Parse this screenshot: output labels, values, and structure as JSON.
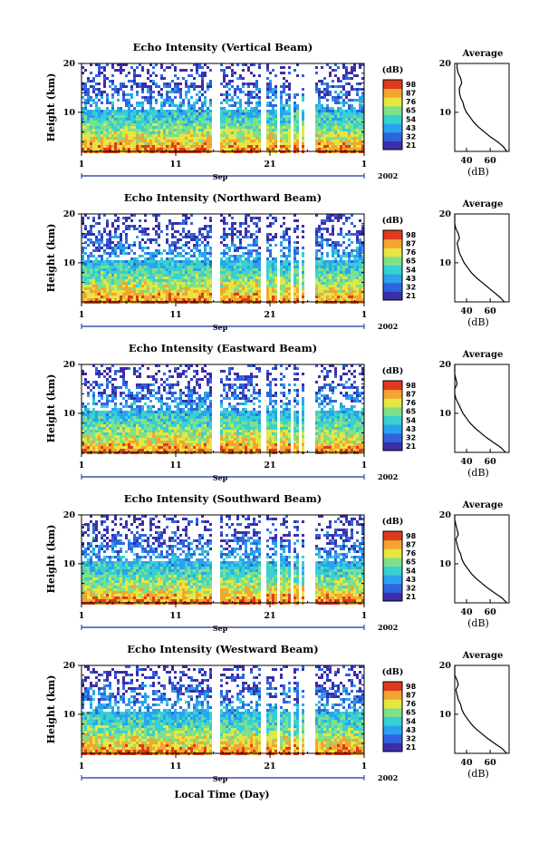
{
  "figure": {
    "xlabel": "Local Time (Day)"
  },
  "chart_data": [
    {
      "type": "heatmap",
      "title": "Echo Intensity (Vertical Beam)",
      "ylabel": "Height (km)",
      "y_ticks": [
        "20",
        "10"
      ],
      "x_ticks": [
        "1",
        "11",
        "21",
        "1"
      ],
      "month_label": "Sep",
      "year_label": "2002",
      "colorbar": {
        "unit": "(dB)",
        "ticks": [
          "98",
          "87",
          "76",
          "65",
          "54",
          "43",
          "32",
          "21"
        ]
      },
      "profile": {
        "title": "Average",
        "unit": "(dB)",
        "x_ticks": [
          "40",
          "60"
        ],
        "y_ticks": [
          "20",
          "10"
        ],
        "heights": [
          2,
          3,
          4,
          5,
          6,
          7,
          8,
          9,
          10,
          11,
          12,
          13,
          14,
          15,
          16,
          17,
          18,
          19,
          20
        ],
        "values": [
          74,
          71,
          66,
          60,
          55,
          50,
          46,
          43,
          40,
          38,
          37,
          35,
          34,
          34,
          36,
          35,
          33,
          32,
          32
        ]
      },
      "gaps_days": [
        [
          14.8,
          15.7
        ],
        [
          19.8,
          20.4
        ],
        [
          21.5,
          22.0
        ],
        [
          23.0,
          23.4
        ],
        [
          23.8,
          24.2
        ],
        [
          24.6,
          25.7
        ]
      ],
      "range_days": [
        1,
        31
      ],
      "height_range_km": [
        2,
        20
      ]
    },
    {
      "type": "heatmap",
      "title": "Echo Intensity (Northward Beam)",
      "ylabel": "Height (km)",
      "y_ticks": [
        "20",
        "10"
      ],
      "x_ticks": [
        "1",
        "11",
        "21",
        "1"
      ],
      "month_label": "Sep",
      "year_label": "2002",
      "colorbar": {
        "unit": "(dB)",
        "ticks": [
          "98",
          "87",
          "76",
          "65",
          "54",
          "43",
          "32",
          "21"
        ]
      },
      "profile": {
        "title": "Average",
        "unit": "(dB)",
        "x_ticks": [
          "40",
          "60"
        ],
        "y_ticks": [
          "20",
          "10"
        ],
        "heights": [
          2,
          3,
          4,
          5,
          6,
          7,
          8,
          9,
          10,
          11,
          12,
          13,
          14,
          15,
          16,
          17,
          18,
          19,
          20
        ],
        "values": [
          72,
          68,
          63,
          58,
          53,
          48,
          44,
          41,
          38,
          36,
          34,
          33,
          32,
          34,
          33,
          31,
          30,
          30,
          30
        ]
      },
      "gaps_days": [
        [
          14.8,
          15.7
        ],
        [
          19.8,
          20.4
        ],
        [
          21.5,
          22.0
        ],
        [
          23.0,
          23.4
        ],
        [
          23.8,
          24.2
        ],
        [
          24.6,
          25.7
        ]
      ],
      "range_days": [
        1,
        31
      ],
      "height_range_km": [
        2,
        20
      ]
    },
    {
      "type": "heatmap",
      "title": "Echo Intensity (Eastward Beam)",
      "ylabel": "Height (km)",
      "y_ticks": [
        "20",
        "10"
      ],
      "x_ticks": [
        "1",
        "11",
        "21",
        "1"
      ],
      "month_label": "Sep",
      "year_label": "2002",
      "colorbar": {
        "unit": "(dB)",
        "ticks": [
          "98",
          "87",
          "76",
          "65",
          "54",
          "43",
          "32",
          "21"
        ]
      },
      "profile": {
        "title": "Average",
        "unit": "(dB)",
        "x_ticks": [
          "40",
          "60"
        ],
        "y_ticks": [
          "20",
          "10"
        ],
        "heights": [
          2,
          3,
          4,
          5,
          6,
          7,
          8,
          9,
          10,
          11,
          12,
          13,
          14,
          15,
          16,
          17,
          18,
          19,
          20
        ],
        "values": [
          73,
          69,
          63,
          57,
          52,
          47,
          43,
          40,
          37,
          35,
          33,
          31,
          30,
          30,
          32,
          31,
          30,
          30,
          30
        ]
      },
      "gaps_days": [
        [
          14.8,
          15.7
        ],
        [
          19.8,
          20.4
        ],
        [
          21.5,
          22.0
        ],
        [
          23.0,
          23.4
        ],
        [
          23.8,
          24.2
        ],
        [
          24.6,
          25.7
        ]
      ],
      "range_days": [
        1,
        31
      ],
      "height_range_km": [
        2,
        20
      ]
    },
    {
      "type": "heatmap",
      "title": "Echo Intensity (Southward Beam)",
      "ylabel": "Height (km)",
      "y_ticks": [
        "20",
        "10"
      ],
      "x_ticks": [
        "1",
        "11",
        "21",
        "1"
      ],
      "month_label": "Sep",
      "year_label": "2002",
      "colorbar": {
        "unit": "(dB)",
        "ticks": [
          "98",
          "87",
          "76",
          "65",
          "54",
          "43",
          "32",
          "21"
        ]
      },
      "profile": {
        "title": "Average",
        "unit": "(dB)",
        "x_ticks": [
          "40",
          "60"
        ],
        "y_ticks": [
          "20",
          "10"
        ],
        "heights": [
          2,
          3,
          4,
          5,
          6,
          7,
          8,
          9,
          10,
          11,
          12,
          13,
          14,
          15,
          16,
          17,
          18,
          19,
          20
        ],
        "values": [
          74,
          70,
          64,
          58,
          53,
          48,
          44,
          41,
          38,
          36,
          35,
          33,
          32,
          31,
          33,
          32,
          31,
          30,
          30
        ]
      },
      "gaps_days": [
        [
          14.8,
          15.7
        ],
        [
          19.8,
          20.4
        ],
        [
          21.5,
          22.0
        ],
        [
          23.0,
          23.4
        ],
        [
          23.8,
          24.2
        ],
        [
          24.6,
          25.7
        ]
      ],
      "range_days": [
        1,
        31
      ],
      "height_range_km": [
        2,
        20
      ]
    },
    {
      "type": "heatmap",
      "title": "Echo Intensity (Westward Beam)",
      "ylabel": "Height (km)",
      "y_ticks": [
        "20",
        "10"
      ],
      "x_ticks": [
        "1",
        "11",
        "21",
        "1"
      ],
      "month_label": "Sep",
      "year_label": "2002",
      "colorbar": {
        "unit": "(dB)",
        "ticks": [
          "98",
          "87",
          "76",
          "65",
          "54",
          "43",
          "32",
          "21"
        ]
      },
      "profile": {
        "title": "Average",
        "unit": "(dB)",
        "x_ticks": [
          "40",
          "60"
        ],
        "y_ticks": [
          "20",
          "10"
        ],
        "heights": [
          2,
          3,
          4,
          5,
          6,
          7,
          8,
          9,
          10,
          11,
          12,
          13,
          14,
          15,
          16,
          17,
          18,
          19,
          20
        ],
        "values": [
          74,
          70,
          64,
          58,
          53,
          48,
          44,
          41,
          38,
          36,
          35,
          33,
          32,
          31,
          33,
          32,
          30,
          30,
          30
        ]
      },
      "gaps_days": [
        [
          14.8,
          15.7
        ],
        [
          19.8,
          20.4
        ],
        [
          21.5,
          22.0
        ],
        [
          23.0,
          23.4
        ],
        [
          23.8,
          24.2
        ],
        [
          24.6,
          25.7
        ]
      ],
      "range_days": [
        1,
        31
      ],
      "height_range_km": [
        2,
        20
      ]
    }
  ],
  "colors": {
    "scale": [
      "#3b2ea8",
      "#2f64e0",
      "#2aa3ee",
      "#38d0d0",
      "#7fe08a",
      "#e6e640",
      "#f4a430",
      "#e03a1e"
    ],
    "axis": "#000000",
    "timeline": "#1a2fa0"
  }
}
